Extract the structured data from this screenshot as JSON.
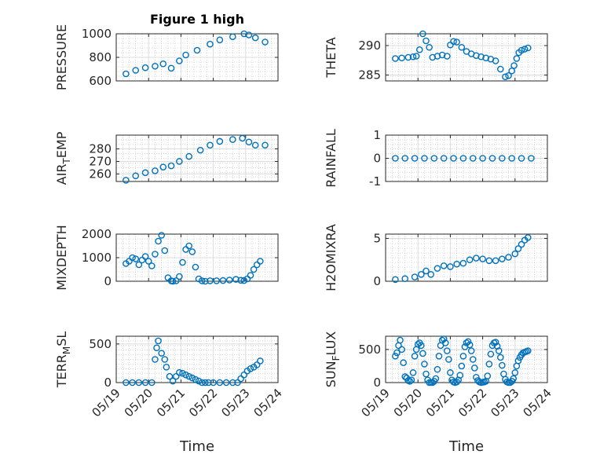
{
  "figure": {
    "title": "Figure 1 high",
    "colors": {
      "marker": "#0072bd",
      "axes": "#262626",
      "grid": "#b8b8b8"
    }
  },
  "chart_data": [
    {
      "type": "scatter",
      "ylabel": "PRESSURE",
      "xlim": [
        "05/19",
        "05/24"
      ],
      "ylim": [
        600,
        1000
      ],
      "yticks": [
        "600",
        "800",
        "1000"
      ],
      "xticks": [
        "05/19",
        "05/20",
        "05/21",
        "05/22",
        "05/23",
        "05/24"
      ],
      "xtick_labels_visible": false,
      "grid": true,
      "minor_grid": true,
      "series": [
        {
          "x": [
            0.3,
            0.6,
            0.9,
            1.2,
            1.45,
            1.7,
            1.95,
            2.15,
            2.5,
            2.9,
            3.2,
            3.6,
            3.95,
            4.1,
            4.3,
            4.6
          ],
          "y": [
            660,
            690,
            712,
            725,
            745,
            708,
            770,
            820,
            860,
            912,
            948,
            975,
            1000,
            990,
            966,
            930
          ]
        }
      ]
    },
    {
      "type": "scatter",
      "ylabel": "THETA",
      "xlim": [
        "05/19",
        "05/24"
      ],
      "ylim": [
        284,
        292
      ],
      "yticks": [
        "285",
        "290"
      ],
      "xticks": [
        "05/19",
        "05/20",
        "05/21",
        "05/22",
        "05/23",
        "05/24"
      ],
      "xtick_labels_visible": false,
      "grid": true,
      "minor_grid": true,
      "series": [
        {
          "x": [
            0.3,
            0.5,
            0.7,
            0.85,
            0.95,
            1.05,
            1.15,
            1.25,
            1.35,
            1.45,
            1.6,
            1.75,
            1.9,
            2.0,
            2.1,
            2.2,
            2.35,
            2.5,
            2.65,
            2.8,
            2.95,
            3.1,
            3.25,
            3.4,
            3.55,
            3.7,
            3.8,
            3.9,
            3.97,
            4.05,
            4.12,
            4.2,
            4.3,
            4.4
          ],
          "y": [
            287.8,
            287.9,
            288.0,
            288.1,
            288.2,
            289.3,
            292.0,
            290.8,
            289.7,
            288.0,
            288.2,
            288.4,
            288.2,
            290.1,
            290.7,
            290.6,
            289.7,
            289.0,
            288.6,
            288.3,
            288.1,
            287.9,
            287.7,
            287.4,
            286.0,
            284.7,
            284.9,
            285.7,
            286.6,
            287.8,
            288.8,
            289.2,
            289.4,
            289.6
          ]
        }
      ]
    },
    {
      "type": "scatter",
      "ylabel": "AIR",
      "ylabel_subscript": "T",
      "ylabel_suffix": "EMP",
      "xlim": [
        "05/19",
        "05/24"
      ],
      "ylim": [
        254,
        291
      ],
      "yticks": [
        "260",
        "270",
        "280"
      ],
      "xticks": [
        "05/19",
        "05/20",
        "05/21",
        "05/22",
        "05/23",
        "05/24"
      ],
      "xtick_labels_visible": false,
      "grid": true,
      "minor_grid": true,
      "series": [
        {
          "x": [
            0.3,
            0.6,
            0.9,
            1.2,
            1.45,
            1.7,
            1.95,
            2.25,
            2.6,
            2.9,
            3.2,
            3.6,
            3.9,
            4.1,
            4.3,
            4.6
          ],
          "y": [
            255,
            258.5,
            261,
            262.5,
            265.5,
            266.5,
            270,
            274,
            279,
            283,
            286,
            287.5,
            288.5,
            285.5,
            283,
            283
          ]
        }
      ]
    },
    {
      "type": "scatter",
      "ylabel": "RAINFALL",
      "xlim": [
        "05/19",
        "05/24"
      ],
      "ylim": [
        -1,
        1
      ],
      "yticks": [
        "-1",
        "0",
        "1"
      ],
      "xticks": [
        "05/19",
        "05/20",
        "05/21",
        "05/22",
        "05/23",
        "05/24"
      ],
      "xtick_labels_visible": false,
      "grid": true,
      "minor_grid": true,
      "series": [
        {
          "x": [
            0.3,
            0.6,
            0.9,
            1.2,
            1.5,
            1.8,
            2.1,
            2.4,
            2.7,
            3.0,
            3.3,
            3.6,
            3.9,
            4.2,
            4.5
          ],
          "y": [
            0,
            0,
            0,
            0,
            0,
            0,
            0,
            0,
            0,
            0,
            0,
            0,
            0,
            0,
            0
          ]
        }
      ]
    },
    {
      "type": "scatter",
      "ylabel": "MIXDEPTH",
      "xlim": [
        "05/19",
        "05/24"
      ],
      "ylim": [
        0,
        2000
      ],
      "yticks": [
        "0",
        "1000",
        "2000"
      ],
      "xticks": [
        "05/19",
        "05/20",
        "05/21",
        "05/22",
        "05/23",
        "05/24"
      ],
      "xtick_labels_visible": false,
      "grid": true,
      "minor_grid": true,
      "series": [
        {
          "x": [
            0.3,
            0.4,
            0.5,
            0.6,
            0.7,
            0.8,
            0.9,
            1.0,
            1.1,
            1.2,
            1.3,
            1.4,
            1.5,
            1.6,
            1.7,
            1.75,
            1.85,
            1.95,
            2.05,
            2.15,
            2.25,
            2.35,
            2.45,
            2.55,
            2.65,
            2.75,
            2.9,
            3.1,
            3.3,
            3.5,
            3.7,
            3.85,
            3.95,
            4.05,
            4.15,
            4.25,
            4.35,
            4.45
          ],
          "y": [
            750,
            850,
            1000,
            950,
            700,
            900,
            1050,
            850,
            650,
            1150,
            1700,
            1950,
            1300,
            150,
            20,
            0,
            20,
            200,
            800,
            1350,
            1500,
            1250,
            600,
            100,
            20,
            0,
            20,
            20,
            30,
            50,
            80,
            40,
            30,
            100,
            250,
            500,
            700,
            850
          ]
        }
      ]
    },
    {
      "type": "scatter",
      "ylabel": "H2OMIXRA",
      "xlim": [
        "05/19",
        "05/24"
      ],
      "ylim": [
        0,
        5.5
      ],
      "yticks": [
        "0",
        "5"
      ],
      "xticks": [
        "05/19",
        "05/20",
        "05/21",
        "05/22",
        "05/23",
        "05/24"
      ],
      "xtick_labels_visible": false,
      "grid": true,
      "minor_grid": true,
      "series": [
        {
          "x": [
            0.3,
            0.6,
            0.9,
            1.1,
            1.25,
            1.4,
            1.6,
            1.8,
            2.0,
            2.2,
            2.4,
            2.6,
            2.8,
            3.0,
            3.2,
            3.4,
            3.6,
            3.8,
            4.0,
            4.1,
            4.2,
            4.3,
            4.4
          ],
          "y": [
            0.2,
            0.3,
            0.5,
            0.8,
            1.2,
            0.8,
            1.5,
            1.8,
            1.7,
            2.0,
            2.1,
            2.5,
            2.7,
            2.6,
            2.4,
            2.4,
            2.6,
            2.8,
            3.2,
            3.8,
            4.3,
            4.8,
            5.1
          ]
        }
      ]
    },
    {
      "type": "scatter",
      "ylabel": "TERR",
      "ylabel_subscript": "M",
      "ylabel_suffix": "SL",
      "xlabel": "Time",
      "xlim": [
        "05/19",
        "05/24"
      ],
      "ylim": [
        0,
        600
      ],
      "yticks": [
        "0",
        "500"
      ],
      "xticks": [
        "05/19",
        "05/20",
        "05/21",
        "05/22",
        "05/23",
        "05/24"
      ],
      "xtick_labels_visible": true,
      "grid": true,
      "minor_grid": true,
      "series": [
        {
          "x": [
            0.3,
            0.5,
            0.7,
            0.9,
            1.1,
            1.2,
            1.25,
            1.3,
            1.4,
            1.5,
            1.55,
            1.65,
            1.75,
            1.85,
            1.95,
            2.05,
            2.15,
            2.25,
            2.35,
            2.45,
            2.55,
            2.65,
            2.75,
            2.85,
            3.0,
            3.2,
            3.4,
            3.6,
            3.75,
            3.85,
            3.95,
            4.05,
            4.15,
            4.25,
            4.35,
            4.45
          ],
          "y": [
            0,
            0,
            0,
            0,
            0,
            300,
            450,
            540,
            380,
            300,
            200,
            80,
            20,
            80,
            130,
            120,
            100,
            80,
            60,
            40,
            20,
            0,
            0,
            0,
            0,
            0,
            0,
            0,
            0,
            50,
            100,
            150,
            180,
            200,
            230,
            280
          ]
        }
      ]
    },
    {
      "type": "scatter",
      "ylabel": "SUN",
      "ylabel_subscript": "F",
      "ylabel_suffix": "LUX",
      "xlabel": "Time",
      "xlim": [
        "05/19",
        "05/24"
      ],
      "ylim": [
        0,
        700
      ],
      "yticks": [
        "0",
        "500"
      ],
      "xticks": [
        "05/19",
        "05/20",
        "05/21",
        "05/22",
        "05/23",
        "05/24"
      ],
      "xtick_labels_visible": true,
      "grid": true,
      "minor_grid": true,
      "series": [
        {
          "x": [
            0.3,
            0.35,
            0.4,
            0.45,
            0.5,
            0.55,
            0.6,
            0.65,
            0.7,
            0.75,
            0.8,
            0.85,
            0.9,
            0.95,
            1.0,
            1.05,
            1.1,
            1.15,
            1.2,
            1.25,
            1.3,
            1.35,
            1.4,
            1.45,
            1.5,
            1.55,
            1.6,
            1.65,
            1.7,
            1.75,
            1.8,
            1.85,
            1.9,
            1.95,
            2.0,
            2.05,
            2.1,
            2.15,
            2.2,
            2.25,
            2.3,
            2.35,
            2.4,
            2.45,
            2.5,
            2.55,
            2.6,
            2.65,
            2.7,
            2.75,
            2.8,
            2.85,
            2.9,
            2.95,
            3.0,
            3.05,
            3.1,
            3.15,
            3.2,
            3.25,
            3.3,
            3.35,
            3.4,
            3.45,
            3.5,
            3.55,
            3.6,
            3.65,
            3.7,
            3.75,
            3.8,
            3.85,
            3.9,
            3.95,
            4.0,
            4.05,
            4.1,
            4.15,
            4.2,
            4.25,
            4.3,
            4.35,
            4.4
          ],
          "y": [
            400,
            450,
            560,
            640,
            500,
            300,
            90,
            70,
            30,
            20,
            40,
            150,
            400,
            500,
            580,
            600,
            560,
            440,
            280,
            130,
            40,
            0,
            0,
            0,
            20,
            60,
            200,
            400,
            560,
            640,
            660,
            600,
            480,
            350,
            150,
            40,
            10,
            0,
            10,
            40,
            110,
            250,
            400,
            540,
            600,
            620,
            570,
            480,
            350,
            220,
            80,
            30,
            10,
            0,
            5,
            10,
            20,
            100,
            280,
            430,
            560,
            600,
            610,
            550,
            480,
            380,
            260,
            130,
            50,
            10,
            0,
            0,
            20,
            60,
            150,
            250,
            330,
            380,
            420,
            450,
            460,
            470,
            480
          ]
        }
      ]
    }
  ]
}
